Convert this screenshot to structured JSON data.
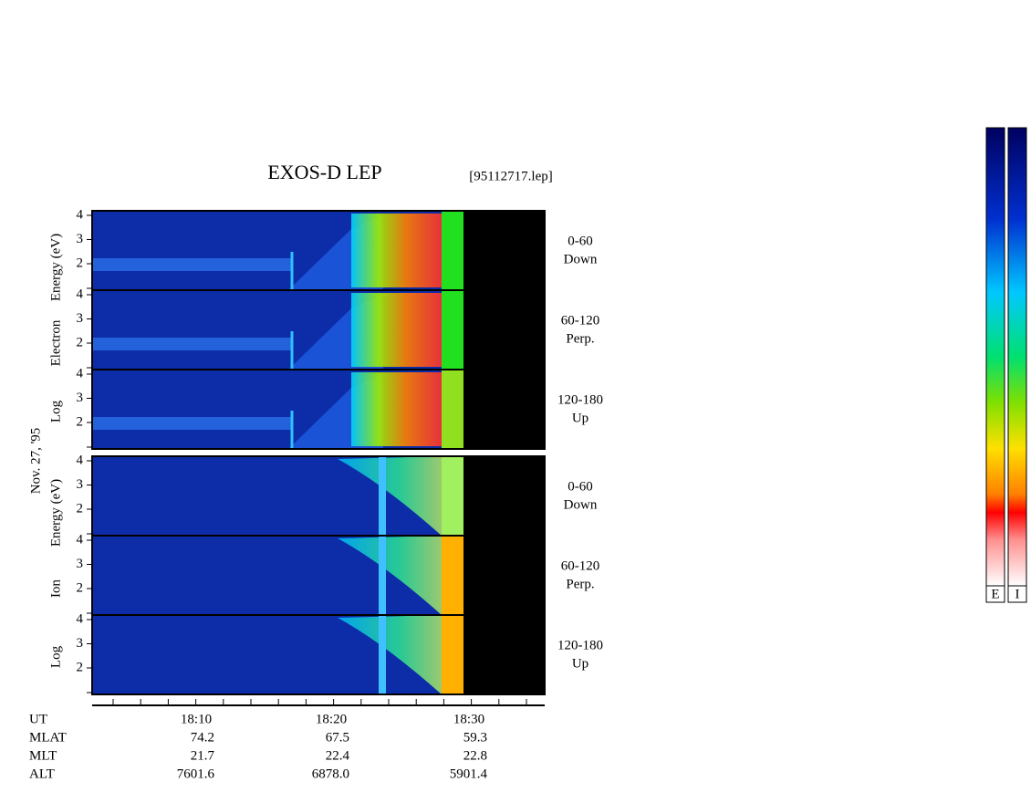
{
  "title": "EXOS-D LEP",
  "file": "[95112717.lep]",
  "date": "Nov. 27, '95",
  "yticks": [
    2,
    3,
    4
  ],
  "electron": {
    "axis_label": [
      "Log",
      "Electron",
      "Energy (eV)"
    ],
    "panels": [
      {
        "range": "0-60",
        "direction": "Down"
      },
      {
        "range": "60-120",
        "direction": "Perp."
      },
      {
        "range": "120-180",
        "direction": "Up"
      }
    ]
  },
  "ion": {
    "axis_label": [
      "Log",
      "Ion",
      "Energy (eV)"
    ],
    "panels": [
      {
        "range": "0-60",
        "direction": "Down"
      },
      {
        "range": "60-120",
        "direction": "Perp."
      },
      {
        "range": "120-180",
        "direction": "Up"
      }
    ]
  },
  "time_axis": {
    "ticks": [
      "18:10",
      "18:20",
      "18:30"
    ]
  },
  "ephemeris": {
    "rows": [
      {
        "label": "UT",
        "values": []
      },
      {
        "label": "MLAT",
        "values": [
          "74.2",
          "67.5",
          "59.3"
        ]
      },
      {
        "label": "MLT",
        "values": [
          "21.7",
          "22.4",
          "22.8"
        ]
      },
      {
        "label": "ALT",
        "values": [
          "7601.6",
          "6878.0",
          "5901.4"
        ]
      }
    ]
  },
  "colorbar_labels": [
    "E",
    "I"
  ]
}
